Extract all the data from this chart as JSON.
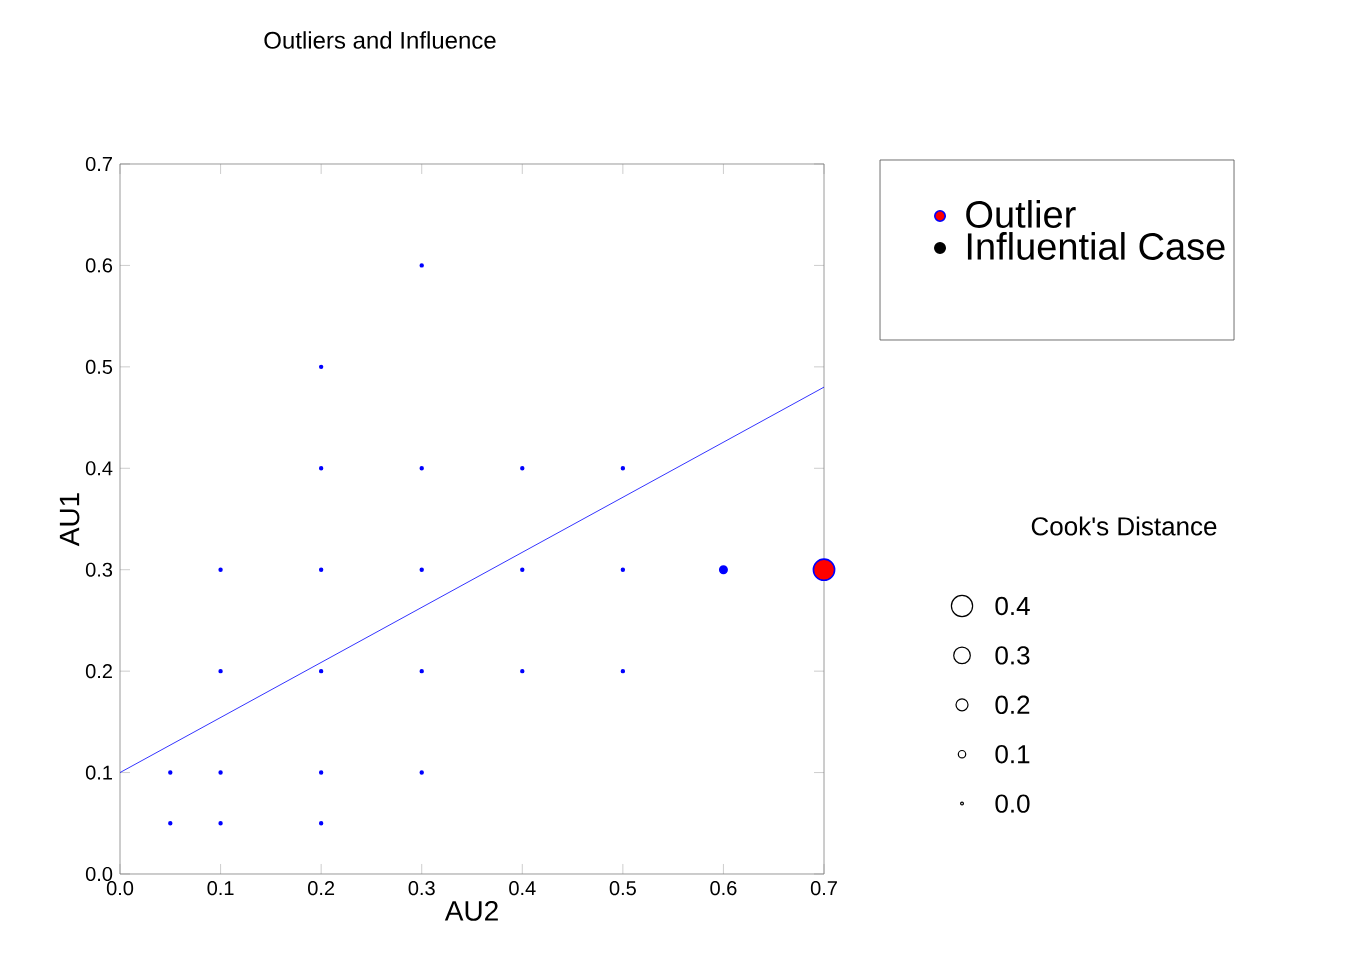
{
  "chart_data": {
    "type": "bubble",
    "title": "Outliers and Influence",
    "xlabel": "AU2",
    "ylabel": "AU1",
    "legend_title": "Cook's Distance",
    "legend": "right",
    "marker": "circle",
    "xlim": [
      0,
      0.7
    ],
    "ylim": [
      0,
      0.7
    ],
    "xticks": [
      {
        "value": 0,
        "label": "0.0"
      },
      {
        "value": 0.1,
        "label": "0.1"
      },
      {
        "value": 0.2,
        "label": "0.2"
      },
      {
        "value": 0.3,
        "label": "0.3"
      },
      {
        "value": 0.4,
        "label": "0.4"
      },
      {
        "value": 0.5,
        "label": "0.5"
      },
      {
        "value": 0.6,
        "label": "0.6"
      },
      {
        "value": 0.7,
        "label": "0.7"
      }
    ],
    "yticks": [
      {
        "value": 0,
        "label": "0.0"
      },
      {
        "value": 0.1,
        "label": "0.1"
      },
      {
        "value": 0.2,
        "label": "0.2"
      },
      {
        "value": 0.3,
        "label": "0.3"
      },
      {
        "value": 0.4,
        "label": "0.4"
      },
      {
        "value": 0.5,
        "label": "0.5"
      },
      {
        "value": 0.6,
        "label": "0.6"
      },
      {
        "value": 0.7,
        "label": "0.7"
      }
    ],
    "size_legend": [
      {
        "value": 0.4,
        "label": "0.4"
      },
      {
        "value": 0.3,
        "label": "0.3"
      },
      {
        "value": 0.2,
        "label": "0.2"
      },
      {
        "value": 0.1,
        "label": "0.1"
      },
      {
        "value": 0,
        "label": "0.0"
      }
    ],
    "series": [
      {
        "color": "#0000ff",
        "x": [
          0.3,
          0.2,
          0.2,
          0.3,
          0.4,
          0.5,
          0.1,
          0.2,
          0.3,
          0.4,
          0.5,
          0.1,
          0.2,
          0.3,
          0.4,
          0.5,
          0.05,
          0.1,
          0.2,
          0.3,
          0.05,
          0.1,
          0.2
        ],
        "values": [
          0.6,
          0.5,
          0.4,
          0.4,
          0.4,
          0.4,
          0.3,
          0.3,
          0.3,
          0.3,
          0.3,
          0.2,
          0.2,
          0.2,
          0.2,
          0.2,
          0.1,
          0.1,
          0.1,
          0.1,
          0.05,
          0.05,
          0.05
        ]
      },
      {
        "color": "#0000ff",
        "x": [
          0.6
        ],
        "values": [
          0.3
        ],
        "sizes": [
          0.1
        ]
      },
      {
        "name": "Outlier",
        "color": "#ff0000",
        "x": [
          0.7
        ],
        "values": [
          0.3
        ],
        "sizes": [
          0.4
        ]
      },
      {
        "name": "Influential Case",
        "color": "#000000"
      },
      {
        "type": "line",
        "color": "#0000ff",
        "marker": "none",
        "x": [
          0,
          0.7
        ],
        "values": [
          0.1,
          0.48
        ]
      }
    ]
  }
}
